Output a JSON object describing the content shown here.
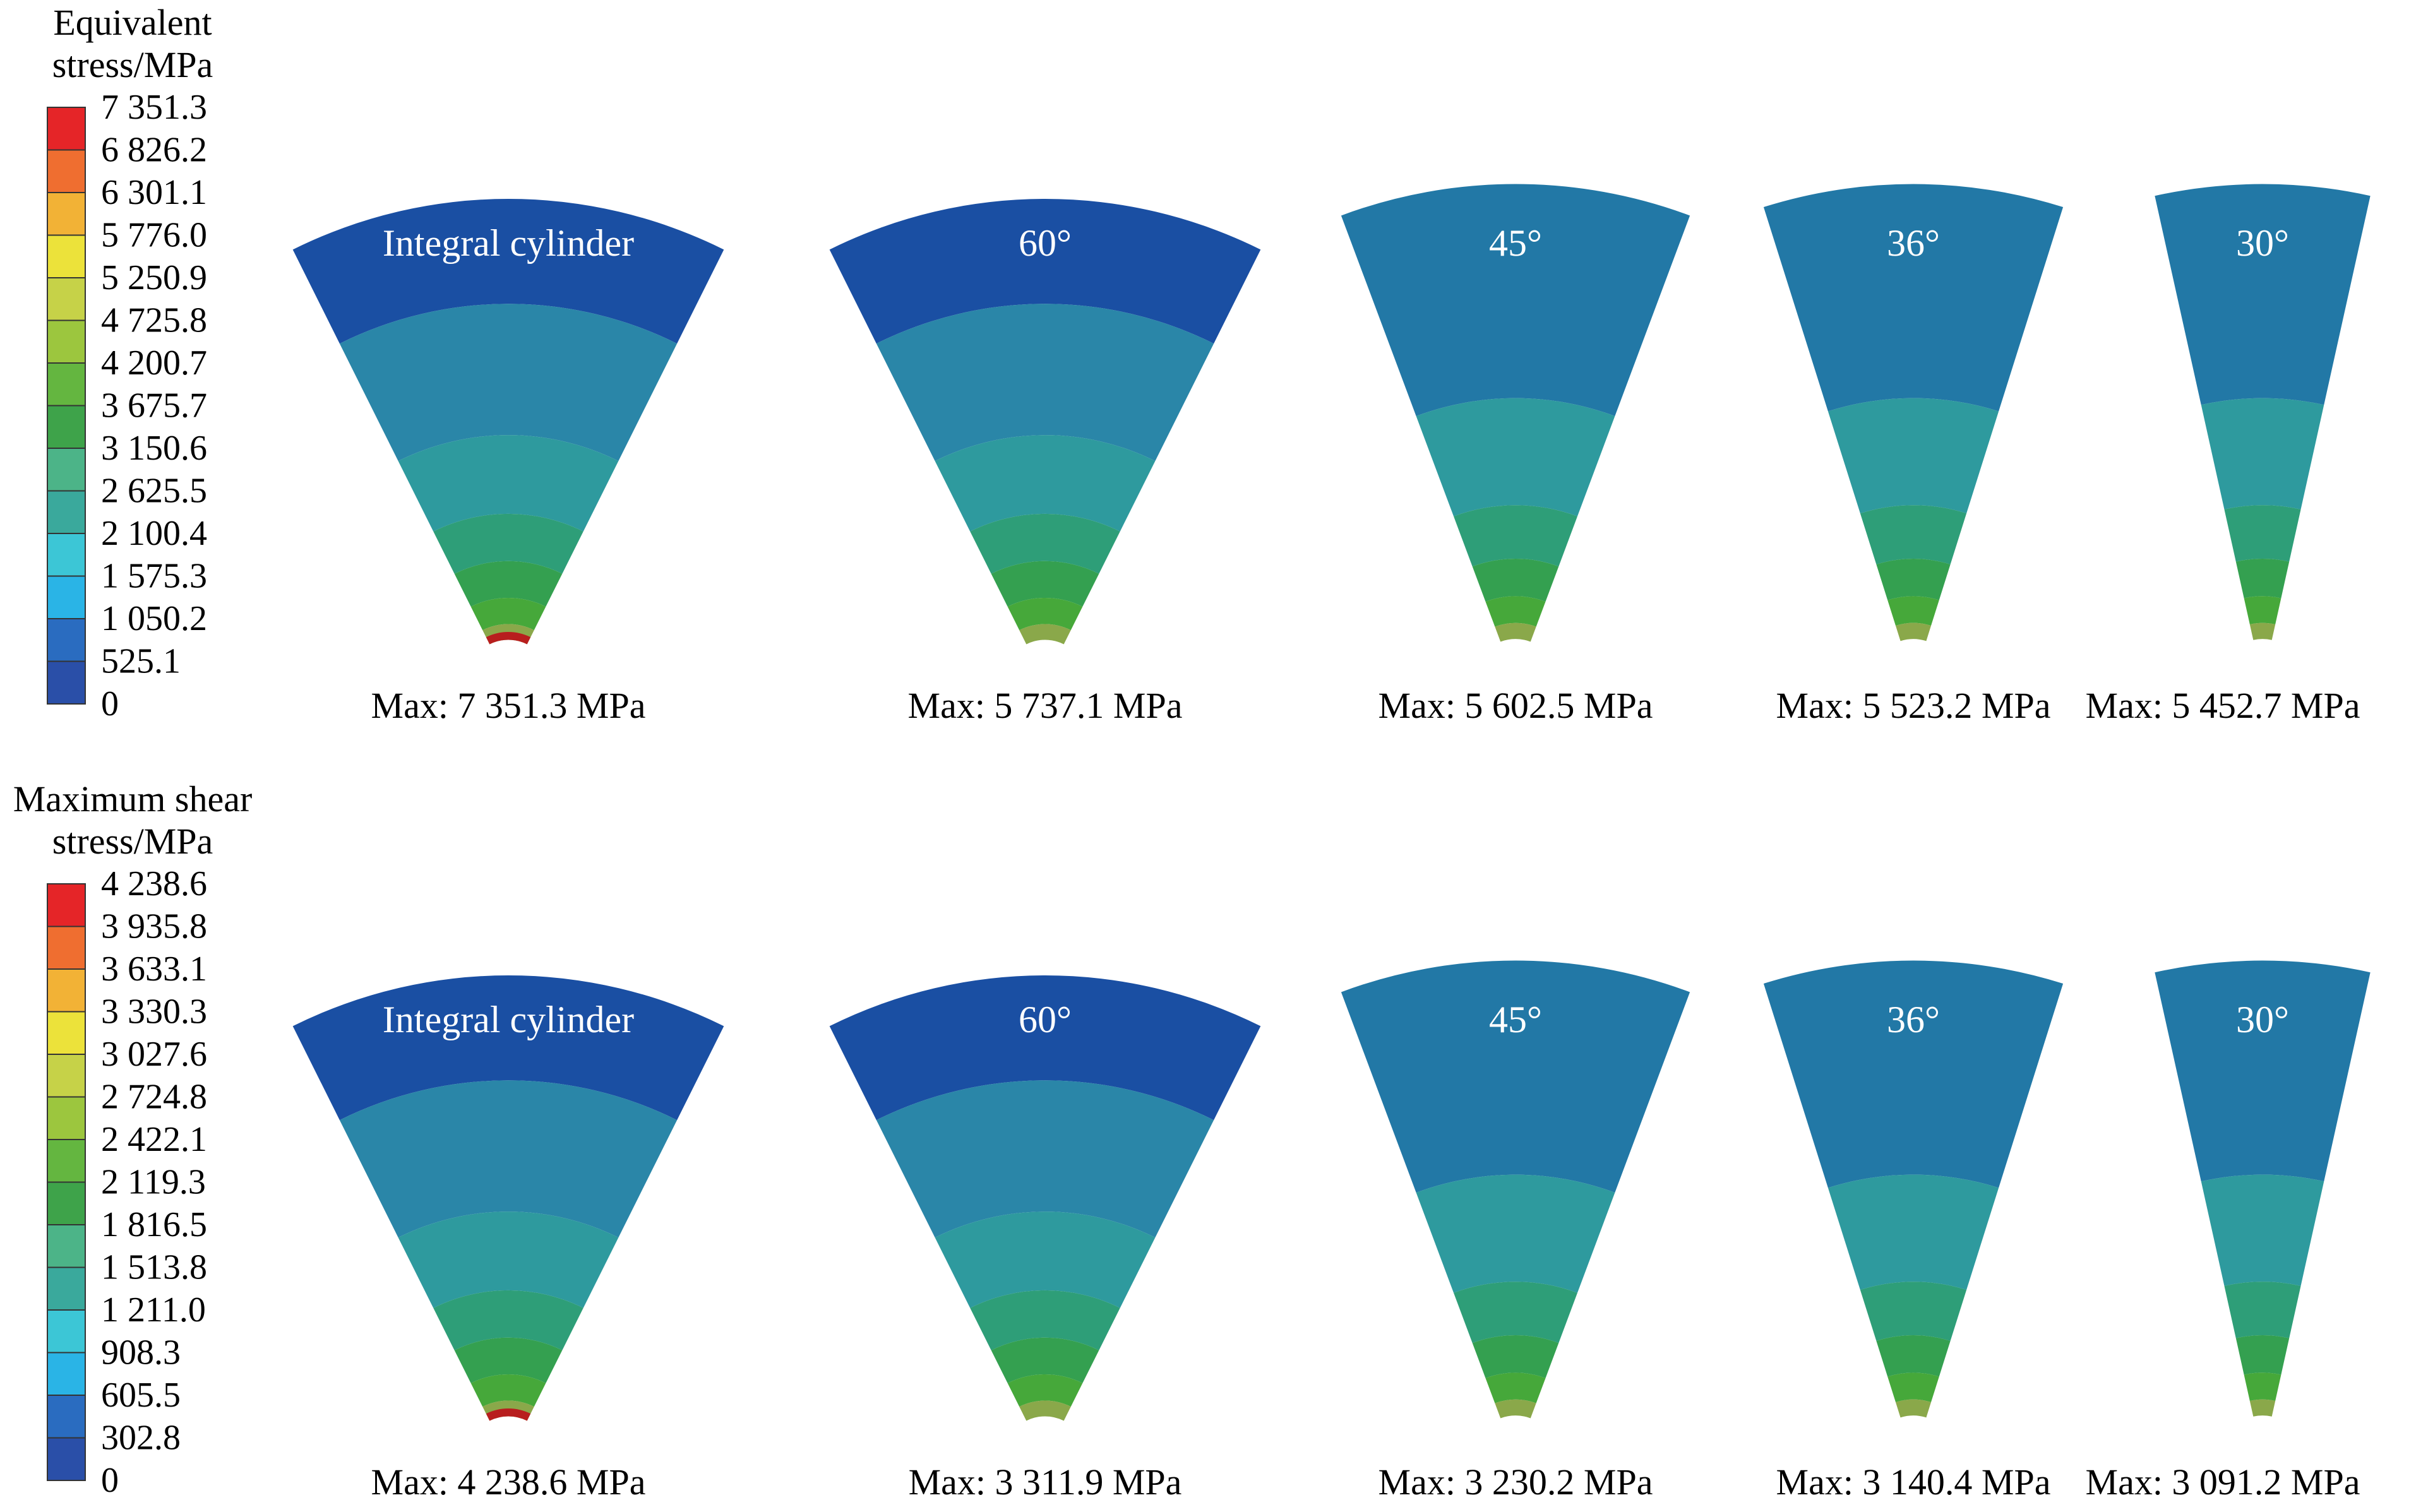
{
  "colors": {
    "scale": [
      "#2a4fa8",
      "#2a6cc0",
      "#2ab4e6",
      "#3cc6d6",
      "#3aa99c",
      "#4cb488",
      "#3ea34a",
      "#64b640",
      "#9cc63e",
      "#c6d248",
      "#ece23a",
      "#f2b236",
      "#ef6e30",
      "#e52528"
    ],
    "outer_blue": "#1a4fa3",
    "outer_teal": "#2278a6",
    "mid_band": "#2a86a8",
    "inner_band": "#2e9a9e",
    "green_1": "#2e9e78",
    "green_2": "#34a050",
    "green_3": "#46a83a",
    "rim_olive": "#8aa84a",
    "rim_red": "#b81e1e"
  },
  "panels": [
    {
      "title_line1": "Equivalent",
      "title_line2": "stress/MPa",
      "ticks": [
        "7 351.3",
        "6 826.2",
        "6 301.1",
        "5 776.0",
        "5 250.9",
        "4 725.8",
        "4 200.7",
        "3 675.7",
        "3 150.6",
        "2 625.5",
        "2 100.4",
        "1 575.3",
        "1 050.2",
        "525.1",
        "0"
      ],
      "sectors": [
        {
          "label": "Integral cylinder",
          "max_text": "Max: 7 351.3 MPa",
          "outer": "blue",
          "red_rim": true
        },
        {
          "label": "60°",
          "max_text": "Max: 5 737.1 MPa",
          "outer": "blue",
          "red_rim": false
        },
        {
          "label": "45°",
          "max_text": "Max: 5 602.5 MPa",
          "outer": "teal",
          "red_rim": false
        },
        {
          "label": "36°",
          "max_text": "Max: 5 523.2 MPa",
          "outer": "teal",
          "red_rim": false
        },
        {
          "label": "30°",
          "max_text": "Max: 5 452.7 MPa",
          "outer": "teal",
          "red_rim": false
        }
      ]
    },
    {
      "title_line1": "Maximum shear",
      "title_line2": "stress/MPa",
      "ticks": [
        "4 238.6",
        "3 935.8",
        "3 633.1",
        "3 330.3",
        "3 027.6",
        "2 724.8",
        "2 422.1",
        "2 119.3",
        "1 816.5",
        "1 513.8",
        "1 211.0",
        "908.3",
        "605.5",
        "302.8",
        "0"
      ],
      "sectors": [
        {
          "label": "Integral cylinder",
          "max_text": "Max: 4 238.6 MPa",
          "outer": "blue",
          "red_rim": true
        },
        {
          "label": "60°",
          "max_text": "Max: 3 311.9 MPa",
          "outer": "blue",
          "red_rim": false
        },
        {
          "label": "45°",
          "max_text": "Max: 3 230.2 MPa",
          "outer": "teal",
          "red_rim": false
        },
        {
          "label": "36°",
          "max_text": "Max: 3 140.4 MPa",
          "outer": "teal",
          "red_rim": false
        },
        {
          "label": "30°",
          "max_text": "Max: 3 091.2 MPa",
          "outer": "teal",
          "red_rim": false
        }
      ]
    }
  ]
}
